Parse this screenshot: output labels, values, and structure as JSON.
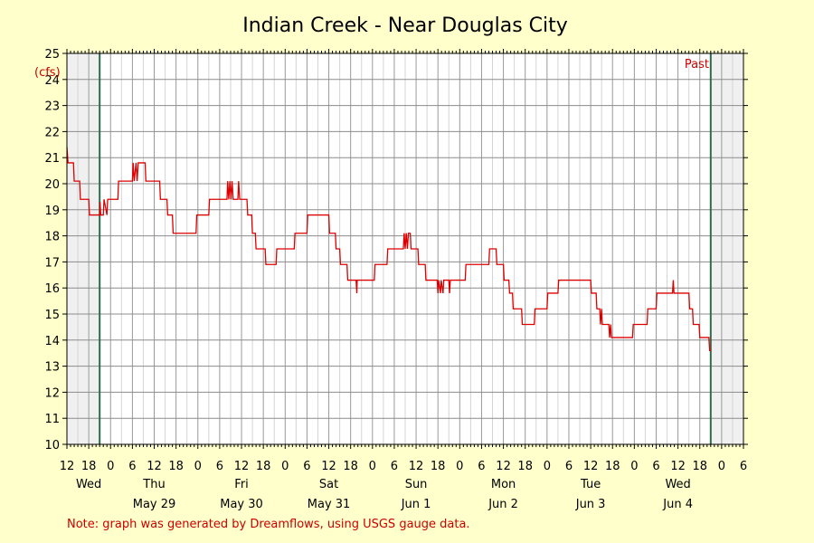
{
  "chart_data": {
    "type": "line",
    "title": "Indian Creek - Near Douglas City",
    "ylabel": "(cfs)",
    "ylim": [
      10,
      25
    ],
    "yticks": [
      10,
      11,
      12,
      13,
      14,
      15,
      16,
      17,
      18,
      19,
      20,
      21,
      22,
      23,
      24,
      25
    ],
    "xlim_hours": [
      0,
      186
    ],
    "hour_ticks": [
      {
        "h": 0,
        "label": "12"
      },
      {
        "h": 6,
        "label": "18"
      },
      {
        "h": 12,
        "label": "0"
      },
      {
        "h": 18,
        "label": "6"
      },
      {
        "h": 24,
        "label": "12"
      },
      {
        "h": 30,
        "label": "18"
      },
      {
        "h": 36,
        "label": "0"
      },
      {
        "h": 42,
        "label": "6"
      },
      {
        "h": 48,
        "label": "12"
      },
      {
        "h": 54,
        "label": "18"
      },
      {
        "h": 60,
        "label": "0"
      },
      {
        "h": 66,
        "label": "6"
      },
      {
        "h": 72,
        "label": "12"
      },
      {
        "h": 78,
        "label": "18"
      },
      {
        "h": 84,
        "label": "0"
      },
      {
        "h": 90,
        "label": "6"
      },
      {
        "h": 96,
        "label": "12"
      },
      {
        "h": 102,
        "label": "18"
      },
      {
        "h": 108,
        "label": "0"
      },
      {
        "h": 114,
        "label": "6"
      },
      {
        "h": 120,
        "label": "12"
      },
      {
        "h": 126,
        "label": "18"
      },
      {
        "h": 132,
        "label": "0"
      },
      {
        "h": 138,
        "label": "6"
      },
      {
        "h": 144,
        "label": "12"
      },
      {
        "h": 150,
        "label": "18"
      },
      {
        "h": 156,
        "label": "0"
      },
      {
        "h": 162,
        "label": "6"
      },
      {
        "h": 168,
        "label": "12"
      },
      {
        "h": 174,
        "label": "18"
      },
      {
        "h": 180,
        "label": "0"
      },
      {
        "h": 186,
        "label": "6"
      }
    ],
    "day_labels": [
      {
        "h": 6,
        "day": "Wed",
        "date": ""
      },
      {
        "h": 24,
        "day": "Thu",
        "date": "May 29"
      },
      {
        "h": 48,
        "day": "Fri",
        "date": "May 30"
      },
      {
        "h": 72,
        "day": "Sat",
        "date": "May 31"
      },
      {
        "h": 96,
        "day": "Sun",
        "date": "Jun 1"
      },
      {
        "h": 120,
        "day": "Mon",
        "date": "Jun 2"
      },
      {
        "h": 144,
        "day": "Tue",
        "date": "Jun 3"
      },
      {
        "h": 168,
        "day": "Wed",
        "date": "Jun 4"
      }
    ],
    "past_label": "Past",
    "markers_hours": [
      9,
      177
    ],
    "series": [
      {
        "color": "#dd0000",
        "points": [
          [
            0,
            21.4
          ],
          [
            0.3,
            20.8
          ],
          [
            1.8,
            20.8
          ],
          [
            2,
            20.1
          ],
          [
            3.5,
            20.1
          ],
          [
            3.7,
            19.4
          ],
          [
            6,
            19.4
          ],
          [
            6.2,
            18.8
          ],
          [
            9,
            18.8
          ],
          [
            9.1,
            19.3
          ],
          [
            9.3,
            18.8
          ],
          [
            10,
            18.8
          ],
          [
            10.2,
            19.4
          ],
          [
            11,
            18.8
          ],
          [
            11.2,
            19.4
          ],
          [
            14,
            19.4
          ],
          [
            14.2,
            20.1
          ],
          [
            18,
            20.1
          ],
          [
            18.2,
            20.8
          ],
          [
            18.5,
            20.1
          ],
          [
            19,
            20.8
          ],
          [
            19.3,
            20.1
          ],
          [
            19.6,
            20.8
          ],
          [
            21.5,
            20.8
          ],
          [
            21.7,
            20.1
          ],
          [
            25.5,
            20.1
          ],
          [
            25.7,
            19.4
          ],
          [
            27.5,
            19.4
          ],
          [
            27.7,
            18.8
          ],
          [
            29,
            18.8
          ],
          [
            29.2,
            18.1
          ],
          [
            35.5,
            18.1
          ],
          [
            35.7,
            18.8
          ],
          [
            39,
            18.8
          ],
          [
            39.2,
            19.4
          ],
          [
            44,
            19.4
          ],
          [
            44.2,
            20.1
          ],
          [
            44.5,
            19.4
          ],
          [
            44.8,
            20.1
          ],
          [
            45.1,
            19.4
          ],
          [
            45.4,
            20.1
          ],
          [
            45.7,
            19.4
          ],
          [
            47,
            19.4
          ],
          [
            47.2,
            20.1
          ],
          [
            47.5,
            19.4
          ],
          [
            49.5,
            19.4
          ],
          [
            49.7,
            18.8
          ],
          [
            50.8,
            18.8
          ],
          [
            51,
            18.1
          ],
          [
            51.8,
            18.1
          ],
          [
            52,
            17.5
          ],
          [
            54.5,
            17.5
          ],
          [
            54.7,
            16.9
          ],
          [
            57.5,
            16.9
          ],
          [
            57.7,
            17.5
          ],
          [
            62.5,
            17.5
          ],
          [
            62.7,
            18.1
          ],
          [
            66,
            18.1
          ],
          [
            66.2,
            18.8
          ],
          [
            72,
            18.8
          ],
          [
            72.2,
            18.1
          ],
          [
            73.8,
            18.1
          ],
          [
            74,
            17.5
          ],
          [
            75,
            17.5
          ],
          [
            75.2,
            16.9
          ],
          [
            77,
            16.9
          ],
          [
            77.2,
            16.3
          ],
          [
            79.5,
            16.3
          ],
          [
            79.7,
            15.8
          ],
          [
            79.8,
            16.3
          ],
          [
            84.5,
            16.3
          ],
          [
            84.7,
            16.9
          ],
          [
            88,
            16.9
          ],
          [
            88.2,
            17.5
          ],
          [
            92.5,
            17.5
          ],
          [
            92.7,
            18.1
          ],
          [
            93,
            17.5
          ],
          [
            93.3,
            18.1
          ],
          [
            93.6,
            17.5
          ],
          [
            93.9,
            18.1
          ],
          [
            94.4,
            18.1
          ],
          [
            94.6,
            17.5
          ],
          [
            96.5,
            17.5
          ],
          [
            96.7,
            16.9
          ],
          [
            98.5,
            16.9
          ],
          [
            98.7,
            16.3
          ],
          [
            101.8,
            16.3
          ],
          [
            102,
            15.8
          ],
          [
            102.2,
            16.3
          ],
          [
            102.7,
            15.8
          ],
          [
            102.9,
            16.3
          ],
          [
            103.4,
            15.8
          ],
          [
            103.6,
            16.3
          ],
          [
            105,
            16.3
          ],
          [
            105.2,
            15.8
          ],
          [
            105.4,
            16.3
          ],
          [
            109.5,
            16.3
          ],
          [
            109.7,
            16.9
          ],
          [
            116,
            16.9
          ],
          [
            116.2,
            17.5
          ],
          [
            118,
            17.5
          ],
          [
            118.2,
            16.9
          ],
          [
            120,
            16.9
          ],
          [
            120.2,
            16.3
          ],
          [
            121.5,
            16.3
          ],
          [
            121.7,
            15.8
          ],
          [
            122.5,
            15.8
          ],
          [
            122.7,
            15.2
          ],
          [
            125,
            15.2
          ],
          [
            125.2,
            14.6
          ],
          [
            128.5,
            14.6
          ],
          [
            128.7,
            15.2
          ],
          [
            132,
            15.2
          ],
          [
            132.2,
            15.8
          ],
          [
            135,
            15.8
          ],
          [
            135.2,
            16.3
          ],
          [
            144,
            16.3
          ],
          [
            144.2,
            15.8
          ],
          [
            145.5,
            15.8
          ],
          [
            145.7,
            15.2
          ],
          [
            146.5,
            15.2
          ],
          [
            146.7,
            14.6
          ],
          [
            147,
            15.2
          ],
          [
            147.2,
            14.6
          ],
          [
            149,
            14.6
          ],
          [
            149.2,
            14.1
          ],
          [
            149.5,
            14.6
          ],
          [
            149.7,
            14.1
          ],
          [
            155.5,
            14.1
          ],
          [
            155.7,
            14.6
          ],
          [
            159.5,
            14.6
          ],
          [
            159.7,
            15.2
          ],
          [
            162,
            15.2
          ],
          [
            162.2,
            15.8
          ],
          [
            166.5,
            15.8
          ],
          [
            166.7,
            16.3
          ],
          [
            166.9,
            15.8
          ],
          [
            171,
            15.8
          ],
          [
            171.2,
            15.2
          ],
          [
            172,
            15.2
          ],
          [
            172.2,
            14.6
          ],
          [
            173.8,
            14.6
          ],
          [
            174,
            14.1
          ],
          [
            176.5,
            14.1
          ],
          [
            176.7,
            13.6
          ],
          [
            177,
            13.6
          ]
        ]
      }
    ]
  },
  "note": "Note: graph was generated by Dreamflows, using USGS gauge data."
}
